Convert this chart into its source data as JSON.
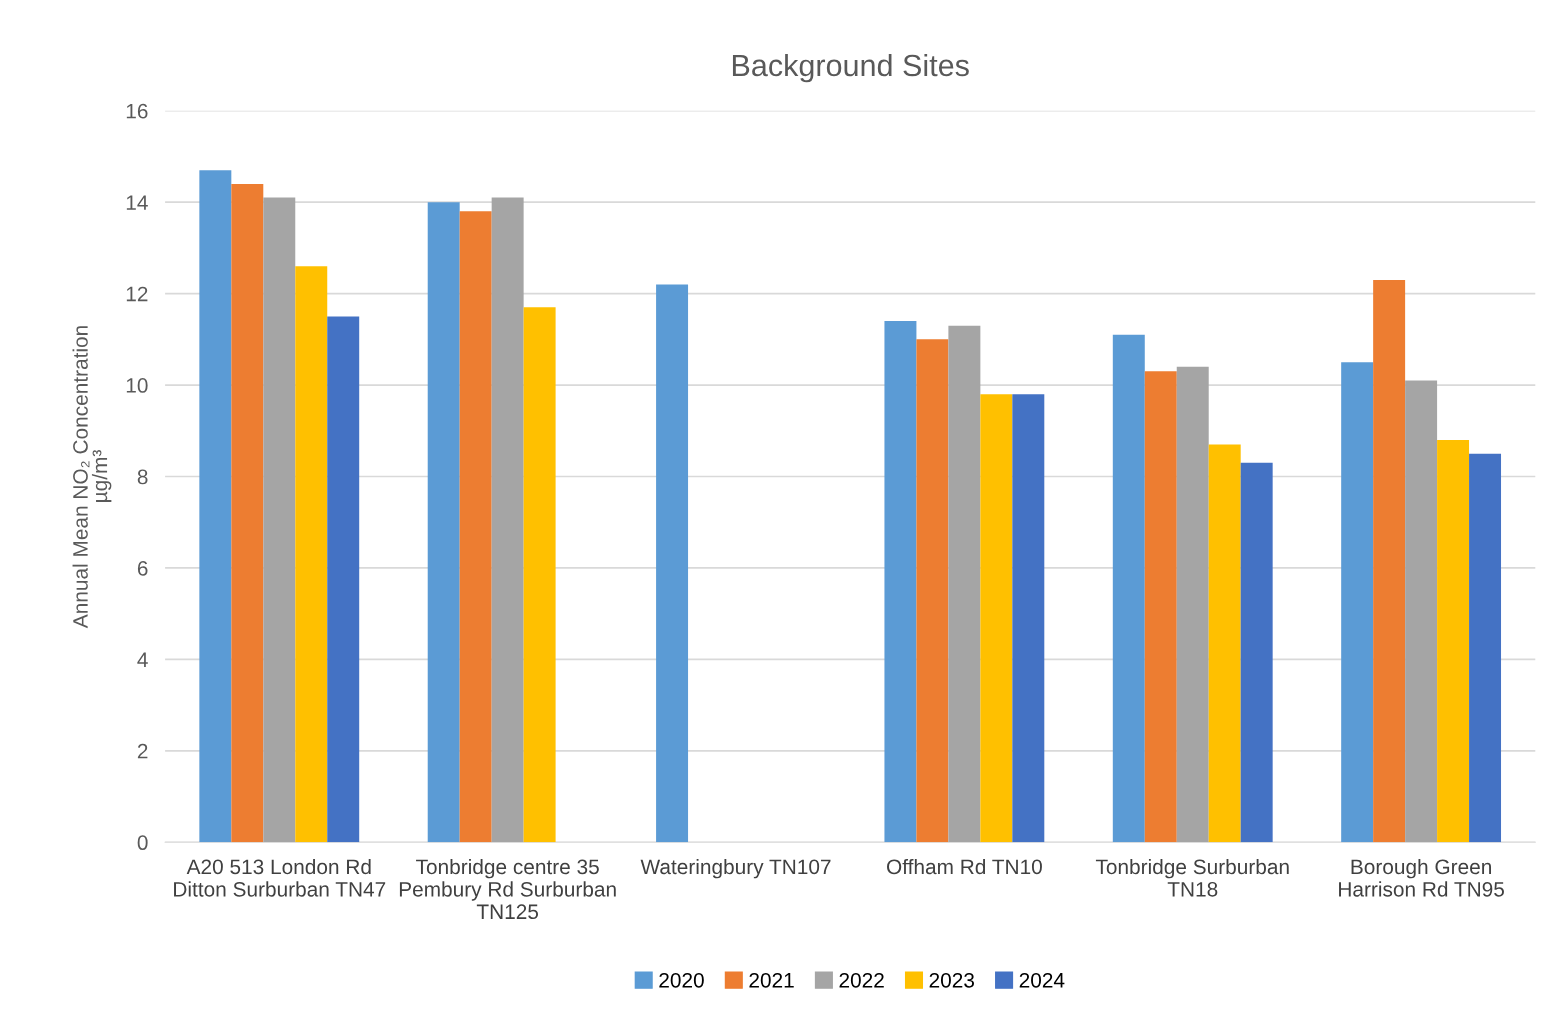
{
  "chart_data": {
    "type": "bar",
    "title": "Background Sites",
    "ylabel": "Annual Mean NO₂ Concentration\nµg/m³",
    "categories": [
      "A20 513 London Rd\nDitton Surburban TN47",
      "Tonbridge centre 35\nPembury Rd Surburban\nTN125",
      "Wateringbury TN107",
      "Offham Rd TN10",
      "Tonbridge Surburban\nTN18",
      "Borough Green\nHarrison Rd TN95"
    ],
    "series": [
      {
        "name": "2020",
        "color": "#5b9bd5",
        "values": [
          14.7,
          14.0,
          12.2,
          11.4,
          11.1,
          10.5
        ]
      },
      {
        "name": "2021",
        "color": "#ed7d31",
        "values": [
          14.4,
          13.8,
          null,
          11.0,
          10.3,
          12.3
        ]
      },
      {
        "name": "2022",
        "color": "#a5a5a5",
        "values": [
          14.1,
          14.1,
          null,
          11.3,
          10.4,
          10.1
        ]
      },
      {
        "name": "2023",
        "color": "#ffc000",
        "values": [
          12.6,
          11.7,
          null,
          9.8,
          8.7,
          8.8
        ]
      },
      {
        "name": "2024",
        "color": "#4472c4",
        "values": [
          11.5,
          null,
          null,
          9.8,
          8.3,
          8.5
        ]
      }
    ],
    "ylim": [
      0,
      16
    ],
    "yticks": [
      0,
      2,
      4,
      6,
      8,
      10,
      12,
      14,
      16
    ],
    "grid": "y",
    "legend": "bottom"
  }
}
